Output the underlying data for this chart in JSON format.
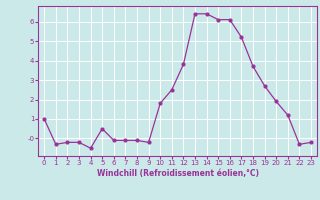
{
  "x": [
    0,
    1,
    2,
    3,
    4,
    5,
    6,
    7,
    8,
    9,
    10,
    11,
    12,
    13,
    14,
    15,
    16,
    17,
    18,
    19,
    20,
    21,
    22,
    23
  ],
  "y": [
    1.0,
    -0.3,
    -0.2,
    -0.2,
    -0.5,
    0.5,
    -0.1,
    -0.1,
    -0.1,
    -0.2,
    1.8,
    2.5,
    3.8,
    6.4,
    6.4,
    6.1,
    6.1,
    5.2,
    3.7,
    2.7,
    1.9,
    1.2,
    -0.3,
    -0.2
  ],
  "line_color": "#993399",
  "marker": "o",
  "marker_size": 2,
  "linewidth": 0.9,
  "bg_color": "#cce9e9",
  "grid_color": "#ffffff",
  "xlabel": "Windchill (Refroidissement éolien,°C)",
  "xlabel_color": "#993399",
  "xlabel_fontsize": 5.5,
  "tick_color": "#993399",
  "tick_fontsize": 5,
  "ylim": [
    -0.9,
    6.8
  ],
  "xlim": [
    -0.5,
    23.5
  ],
  "yticks": [
    0,
    1,
    2,
    3,
    4,
    5,
    6
  ],
  "ytick_labels": [
    "-0",
    "1",
    "2",
    "3",
    "4",
    "5",
    "6"
  ]
}
